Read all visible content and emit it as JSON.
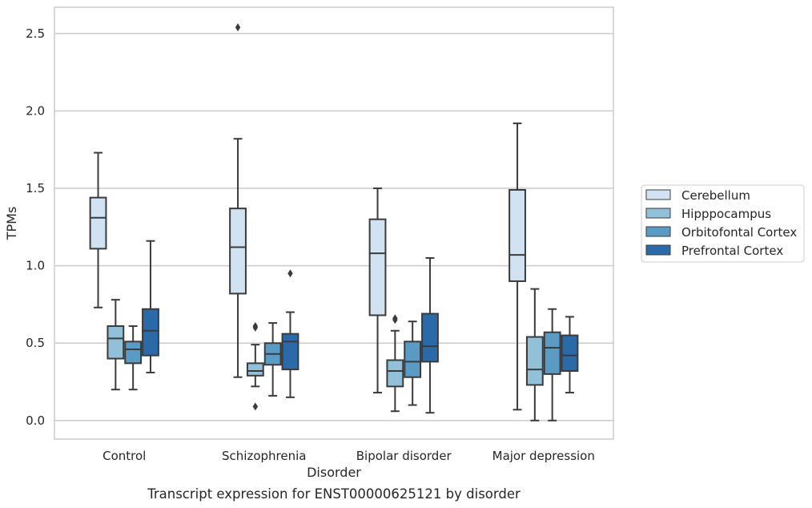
{
  "chart_data": {
    "type": "box",
    "xlabel": "Disorder",
    "ylabel": "TPMs",
    "caption": "Transcript expression for ENST00000625121 by disorder",
    "ylim": [
      -0.12,
      2.67
    ],
    "yticks": [
      0.0,
      0.5,
      1.0,
      1.5,
      2.0,
      2.5
    ],
    "ytick_labels": [
      "0.0",
      "0.5",
      "1.0",
      "1.5",
      "2.0",
      "2.5"
    ],
    "grid": "horizontal",
    "legend_position": "right",
    "categories": [
      "Control",
      "Schizophrenia",
      "Bipolar disorder",
      "Major depression"
    ],
    "series": [
      {
        "name": "Cerebellum",
        "color": "#d1e2f2",
        "boxes": [
          {
            "whisker_low": 0.73,
            "q1": 1.11,
            "median": 1.31,
            "q3": 1.44,
            "whisker_high": 1.73,
            "outliers": []
          },
          {
            "whisker_low": 0.28,
            "q1": 0.82,
            "median": 1.12,
            "q3": 1.37,
            "whisker_high": 1.82,
            "outliers": [
              2.54
            ]
          },
          {
            "whisker_low": 0.18,
            "q1": 0.68,
            "median": 1.08,
            "q3": 1.3,
            "whisker_high": 1.5,
            "outliers": []
          },
          {
            "whisker_low": 0.07,
            "q1": 0.9,
            "median": 1.07,
            "q3": 1.49,
            "whisker_high": 1.92,
            "outliers": []
          }
        ]
      },
      {
        "name": "Hipppocampus",
        "color": "#93c0d9",
        "boxes": [
          {
            "whisker_low": 0.2,
            "q1": 0.4,
            "median": 0.53,
            "q3": 0.61,
            "whisker_high": 0.78,
            "outliers": []
          },
          {
            "whisker_low": 0.22,
            "q1": 0.29,
            "median": 0.32,
            "q3": 0.37,
            "whisker_high": 0.49,
            "outliers": [
              0.61,
              0.6,
              0.09
            ]
          },
          {
            "whisker_low": 0.06,
            "q1": 0.22,
            "median": 0.32,
            "q3": 0.39,
            "whisker_high": 0.58,
            "outliers": [
              0.66,
              0.65
            ]
          },
          {
            "whisker_low": 0.0,
            "q1": 0.23,
            "median": 0.33,
            "q3": 0.54,
            "whisker_high": 0.85,
            "outliers": []
          }
        ]
      },
      {
        "name": "Orbitofontal Cortex",
        "color": "#5a9bc6",
        "boxes": [
          {
            "whisker_low": 0.2,
            "q1": 0.37,
            "median": 0.46,
            "q3": 0.51,
            "whisker_high": 0.61,
            "outliers": []
          },
          {
            "whisker_low": 0.16,
            "q1": 0.36,
            "median": 0.43,
            "q3": 0.5,
            "whisker_high": 0.63,
            "outliers": []
          },
          {
            "whisker_low": 0.1,
            "q1": 0.28,
            "median": 0.38,
            "q3": 0.51,
            "whisker_high": 0.64,
            "outliers": []
          },
          {
            "whisker_low": 0.0,
            "q1": 0.3,
            "median": 0.47,
            "q3": 0.57,
            "whisker_high": 0.72,
            "outliers": []
          }
        ]
      },
      {
        "name": "Prefrontal Cortex",
        "color": "#2a6aa9",
        "boxes": [
          {
            "whisker_low": 0.31,
            "q1": 0.42,
            "median": 0.58,
            "q3": 0.72,
            "whisker_high": 1.16,
            "outliers": []
          },
          {
            "whisker_low": 0.15,
            "q1": 0.33,
            "median": 0.51,
            "q3": 0.56,
            "whisker_high": 0.7,
            "outliers": [
              0.95
            ]
          },
          {
            "whisker_low": 0.05,
            "q1": 0.38,
            "median": 0.48,
            "q3": 0.69,
            "whisker_high": 1.05,
            "outliers": []
          },
          {
            "whisker_low": 0.18,
            "q1": 0.32,
            "median": 0.42,
            "q3": 0.55,
            "whisker_high": 0.67,
            "outliers": []
          }
        ]
      }
    ]
  }
}
